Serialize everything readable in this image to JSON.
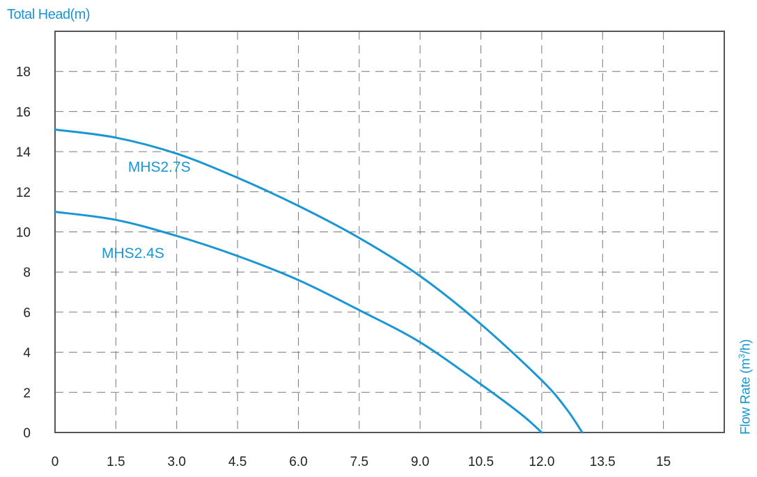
{
  "chart_data": {
    "type": "line",
    "ylabel": "Total Head(m)",
    "xlabel": {
      "prefix": "Flow Rate (m",
      "sup": "3",
      "suffix": "/h)"
    },
    "xlim": [
      0,
      16.5
    ],
    "ylim": [
      0,
      20
    ],
    "x_ticks": [
      "0",
      "1.5",
      "3.0",
      "4.5",
      "6.0",
      "7.5",
      "9.0",
      "10.5",
      "12.0",
      "13.5",
      "15"
    ],
    "x_tick_values": [
      0,
      1.5,
      3.0,
      4.5,
      6.0,
      7.5,
      9.0,
      10.5,
      12.0,
      13.5,
      15
    ],
    "y_ticks": [
      "0",
      "2",
      "4",
      "6",
      "8",
      "10",
      "12",
      "14",
      "16",
      "18"
    ],
    "y_tick_values": [
      0,
      2,
      4,
      6,
      8,
      10,
      12,
      14,
      16,
      18
    ],
    "grid": true,
    "series_color": "#1a96d2",
    "series": [
      {
        "name": "MHS2.7S",
        "label_at": [
          1.8,
          13.0
        ],
        "x": [
          0,
          1.5,
          3.0,
          4.5,
          6.0,
          7.5,
          9.0,
          10.5,
          12.0,
          12.6,
          13.0
        ],
        "y": [
          15.1,
          14.7,
          13.9,
          12.7,
          11.3,
          9.7,
          7.8,
          5.4,
          2.6,
          1.2,
          0
        ]
      },
      {
        "name": "MHS2.4S",
        "label_at": [
          1.15,
          8.7
        ],
        "x": [
          0,
          1.5,
          3.0,
          4.5,
          6.0,
          7.5,
          9.0,
          10.5,
          11.5,
          12.0
        ],
        "y": [
          11.0,
          10.6,
          9.8,
          8.8,
          7.6,
          6.1,
          4.5,
          2.4,
          0.9,
          0
        ]
      }
    ]
  }
}
